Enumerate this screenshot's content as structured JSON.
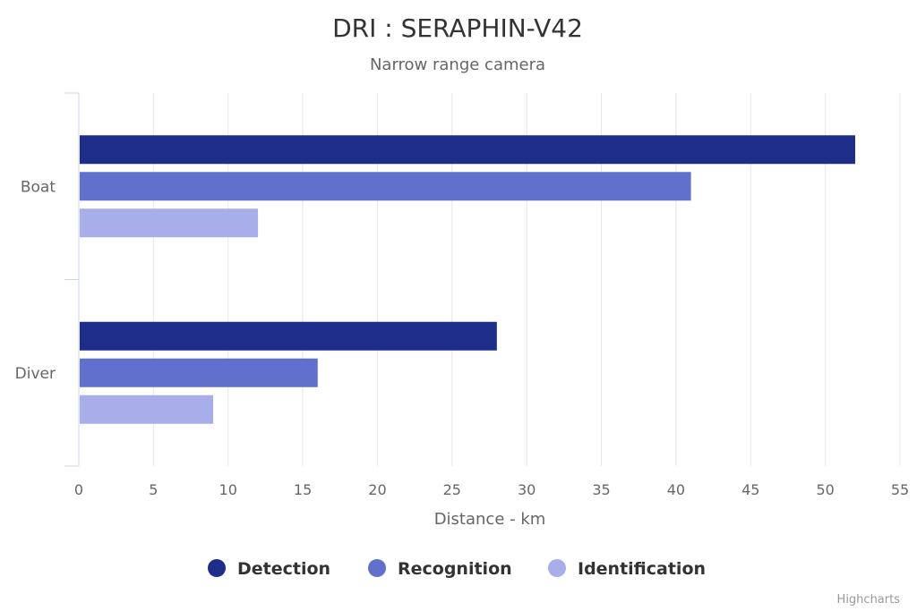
{
  "chart_data": {
    "type": "bar",
    "orientation": "horizontal",
    "title": "DRI : SERAPHIN-V42",
    "subtitle": "Narrow range camera",
    "categories": [
      "Boat",
      "Diver"
    ],
    "series": [
      {
        "name": "Detection",
        "values": [
          52,
          28
        ],
        "color": "#1f2d8a"
      },
      {
        "name": "Recognition",
        "values": [
          41,
          16
        ],
        "color": "#6170cc"
      },
      {
        "name": "Identification",
        "values": [
          12,
          9
        ],
        "color": "#a8aeea"
      }
    ],
    "xlabel": "Distance - km",
    "ylabel": "",
    "xlim": [
      0,
      55
    ],
    "x_ticks": [
      0,
      5,
      10,
      15,
      20,
      25,
      30,
      35,
      40,
      45,
      50,
      55
    ],
    "grid": true,
    "legend": "bottom-center"
  },
  "credits": "Highcharts"
}
